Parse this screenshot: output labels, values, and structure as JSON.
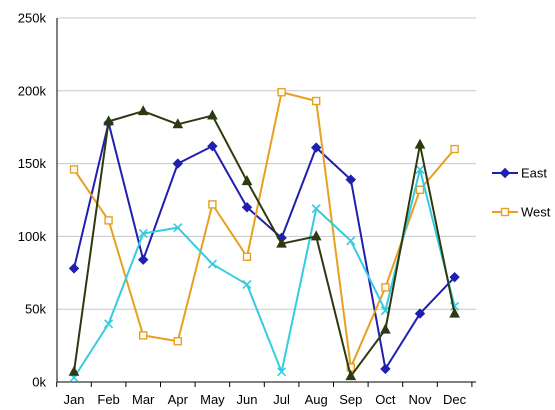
{
  "chart_data": {
    "type": "line",
    "title": "",
    "xlabel": "",
    "ylabel": "",
    "categories": [
      "Jan",
      "Feb",
      "Mar",
      "Apr",
      "May",
      "Jun",
      "Jul",
      "Aug",
      "Sep",
      "Oct",
      "Nov",
      "Dec"
    ],
    "ylim": [
      0,
      250000
    ],
    "yticks": [
      {
        "value": 0,
        "label": "0k"
      },
      {
        "value": 50000,
        "label": "50k"
      },
      {
        "value": 100000,
        "label": "100k"
      },
      {
        "value": 150000,
        "label": "150k"
      },
      {
        "value": 200000,
        "label": "200k"
      },
      {
        "value": 250000,
        "label": "250k"
      }
    ],
    "grid": true,
    "legend_position": "right",
    "series": [
      {
        "name": "East",
        "color": "#2020b0",
        "marker": "diamond",
        "in_legend": true,
        "values": [
          78000,
          178000,
          84000,
          150000,
          162000,
          120000,
          99000,
          161000,
          139000,
          9000,
          47000,
          72000
        ]
      },
      {
        "name": "West",
        "color": "#e8a020",
        "marker": "square",
        "in_legend": true,
        "values": [
          146000,
          111000,
          32000,
          28000,
          122000,
          86000,
          199000,
          193000,
          10000,
          65000,
          132000,
          160000
        ]
      },
      {
        "color": "#33cce0",
        "marker": "x",
        "in_legend": false,
        "values": [
          3000,
          40000,
          102000,
          106000,
          81000,
          67000,
          7000,
          119000,
          97000,
          49000,
          146000,
          52000
        ]
      },
      {
        "color": "#2d3a10",
        "marker": "triangle",
        "in_legend": false,
        "values": [
          7000,
          179000,
          186000,
          177000,
          183000,
          138000,
          95000,
          100000,
          4000,
          36000,
          163000,
          47000
        ]
      }
    ]
  }
}
